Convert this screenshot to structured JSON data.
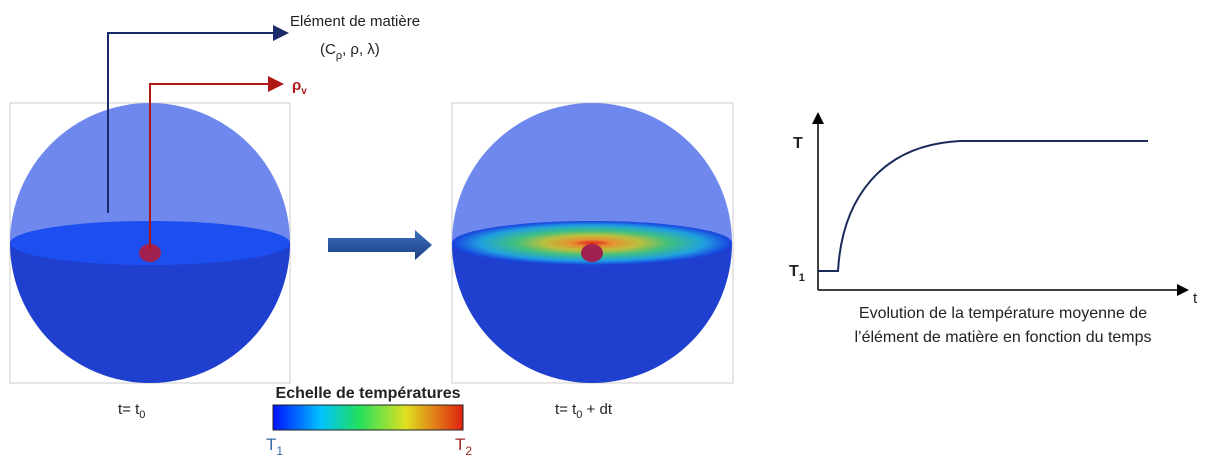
{
  "material_label": {
    "title": "Elément de matière",
    "props": [
      "(C",
      "ρ",
      ", ρ, λ)"
    ]
  },
  "source_label": {
    "main": "ρ",
    "sub": "v"
  },
  "left_caption": {
    "main": "t= t",
    "sub": "0"
  },
  "right_caption": {
    "main": "t= t",
    "sub": "0",
    "rest": " + dt"
  },
  "scale": {
    "title": "Echelle de températures",
    "min": {
      "main": "T",
      "sub": "1"
    },
    "max": {
      "main": "T",
      "sub": "2"
    }
  },
  "graph": {
    "y_label": "T",
    "y_low": {
      "main": "T",
      "sub": "1"
    },
    "x_label": "t",
    "caption": [
      "Evolution de la température moyenne de",
      "l’élément de matière en fonction du temps"
    ]
  }
}
